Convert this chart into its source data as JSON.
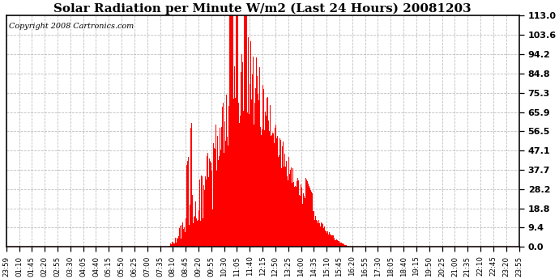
{
  "title": "Solar Radiation per Minute W/m2 (Last 24 Hours) 20081203",
  "copyright": "Copyright 2008 Cartronics.com",
  "bar_color": "#ff0000",
  "background_color": "#ffffff",
  "grid_color": "#c8c8c8",
  "dashed_line_color": "#ff0000",
  "ylim": [
    0.0,
    113.0
  ],
  "yticks": [
    0.0,
    9.4,
    18.8,
    28.2,
    37.7,
    47.1,
    56.5,
    65.9,
    75.3,
    84.8,
    94.2,
    103.6,
    113.0
  ],
  "xtick_labels": [
    "23:59",
    "01:10",
    "01:45",
    "02:20",
    "02:55",
    "03:30",
    "04:05",
    "04:40",
    "05:15",
    "05:50",
    "06:25",
    "07:00",
    "07:35",
    "08:10",
    "08:45",
    "09:20",
    "09:55",
    "10:30",
    "11:05",
    "11:40",
    "12:15",
    "12:50",
    "13:25",
    "14:00",
    "14:35",
    "15:10",
    "15:45",
    "16:20",
    "16:55",
    "17:30",
    "18:05",
    "18:40",
    "19:15",
    "19:50",
    "20:25",
    "21:00",
    "21:35",
    "22:10",
    "22:45",
    "23:20",
    "23:55"
  ]
}
